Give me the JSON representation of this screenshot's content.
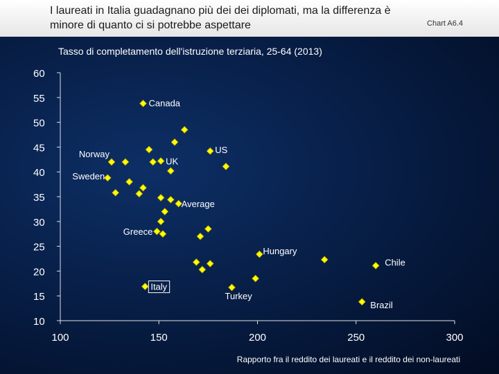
{
  "header": {
    "title": "I laureati in Italia guadagnano più dei dei diplomati, ma la differenza è minore di quanto ci si potrebbe aspettare",
    "chart_id": "Chart A6.4"
  },
  "colors": {
    "point_fill": "#ffff00",
    "point_stroke": "#b8a800",
    "axis": "#e0e0e0",
    "highlight_box": "#ffffff"
  },
  "chart_data": {
    "type": "scatter",
    "title": "Tasso di completamento dell'istruzione terziaria, 25-64 (2013)",
    "xlabel": "Rapporto fra il reddito dei laureati e il reddito dei non-laureati",
    "ylabel": "Tasso di completamento dell'istruzione terziaria, 25-64 (2013)",
    "xlim": [
      100,
      300
    ],
    "ylim": [
      10,
      60
    ],
    "xticks": [
      100,
      150,
      200,
      250,
      300
    ],
    "yticks": [
      10,
      15,
      20,
      25,
      30,
      35,
      40,
      45,
      50,
      55,
      60
    ],
    "points": [
      {
        "x": 142,
        "y": 53.8,
        "label": "Canada"
      },
      {
        "x": 163,
        "y": 48.5,
        "label": ""
      },
      {
        "x": 158,
        "y": 46.0,
        "label": ""
      },
      {
        "x": 145,
        "y": 44.5,
        "label": ""
      },
      {
        "x": 126,
        "y": 42.0,
        "label": "Norway"
      },
      {
        "x": 133,
        "y": 42.0,
        "label": ""
      },
      {
        "x": 147,
        "y": 42.0,
        "label": ""
      },
      {
        "x": 151,
        "y": 42.2,
        "label": "UK"
      },
      {
        "x": 176,
        "y": 44.2,
        "label": "US"
      },
      {
        "x": 184,
        "y": 41.1,
        "label": ""
      },
      {
        "x": 156,
        "y": 40.2,
        "label": ""
      },
      {
        "x": 124,
        "y": 38.8,
        "label": "Sweden"
      },
      {
        "x": 135,
        "y": 38.0,
        "label": ""
      },
      {
        "x": 142,
        "y": 36.8,
        "label": ""
      },
      {
        "x": 128,
        "y": 35.8,
        "label": ""
      },
      {
        "x": 140,
        "y": 35.6,
        "label": ""
      },
      {
        "x": 151,
        "y": 34.8,
        "label": ""
      },
      {
        "x": 156,
        "y": 34.4,
        "label": ""
      },
      {
        "x": 160,
        "y": 33.6,
        "label": "Average"
      },
      {
        "x": 153,
        "y": 32.0,
        "label": ""
      },
      {
        "x": 151,
        "y": 30.0,
        "label": ""
      },
      {
        "x": 175,
        "y": 28.5,
        "label": ""
      },
      {
        "x": 149,
        "y": 28.0,
        "label": "Greece"
      },
      {
        "x": 152,
        "y": 27.5,
        "label": ""
      },
      {
        "x": 171,
        "y": 27.0,
        "label": ""
      },
      {
        "x": 201,
        "y": 23.4,
        "label": "Hungary"
      },
      {
        "x": 234,
        "y": 22.3,
        "label": ""
      },
      {
        "x": 169,
        "y": 21.8,
        "label": ""
      },
      {
        "x": 176,
        "y": 21.5,
        "label": ""
      },
      {
        "x": 260,
        "y": 21.1,
        "label": "Chile"
      },
      {
        "x": 172,
        "y": 20.3,
        "label": ""
      },
      {
        "x": 199,
        "y": 18.5,
        "label": ""
      },
      {
        "x": 143,
        "y": 16.9,
        "label": "Italy",
        "highlight": true
      },
      {
        "x": 187,
        "y": 16.7,
        "label": "Turkey"
      },
      {
        "x": 253,
        "y": 13.8,
        "label": "Brazil"
      }
    ]
  }
}
